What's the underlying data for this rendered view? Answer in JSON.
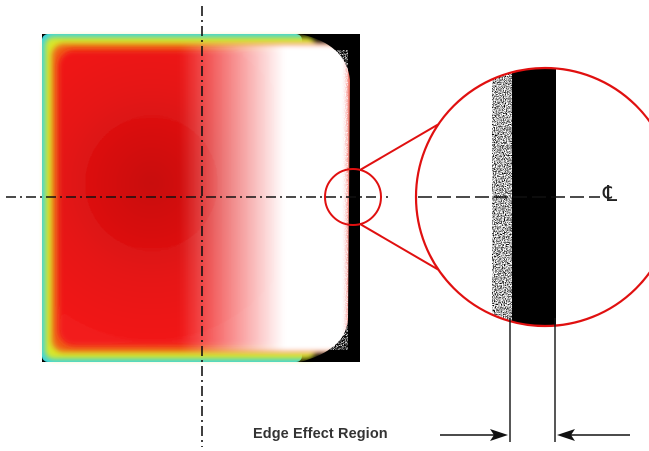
{
  "labels": {
    "edge_region": "Edge Effect Region",
    "centerline": "℄"
  },
  "colors": {
    "heat_core": "#d91010",
    "heat_mid": "#f01818",
    "edge_yellow": "#e8e820",
    "edge_cyan": "#38d8e0",
    "magnifier_ring": "#e01010",
    "axis_line": "#111111"
  }
}
